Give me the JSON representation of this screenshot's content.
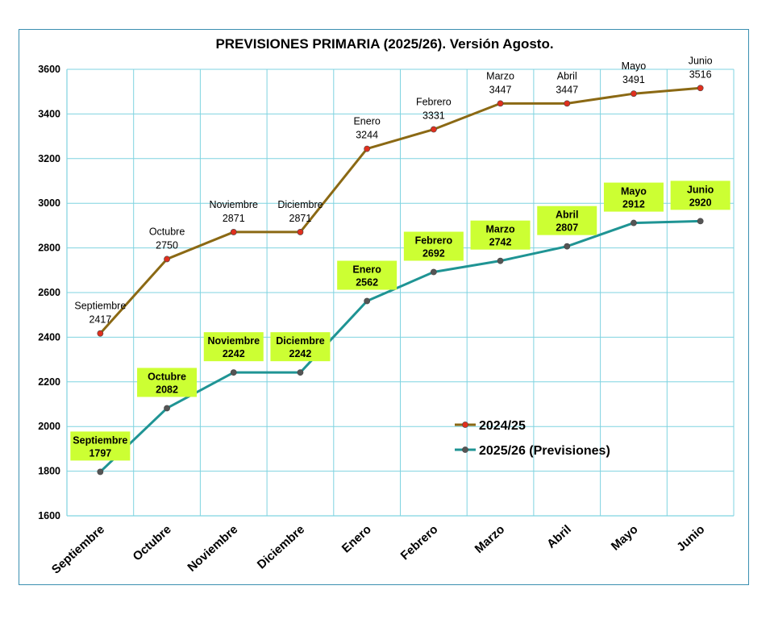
{
  "chart_data": {
    "type": "line",
    "title": "PREVISIONES PRIMARIA (2025/26). Versión Agosto.",
    "categories": [
      "Septiembre",
      "Octubre",
      "Noviembre",
      "Diciembre",
      "Enero",
      "Febrero",
      "Marzo",
      "Abril",
      "Mayo",
      "Junio"
    ],
    "ylim": [
      1600,
      3600
    ],
    "yticks": [
      1600,
      1800,
      2000,
      2200,
      2400,
      2600,
      2800,
      3000,
      3200,
      3400,
      3600
    ],
    "grid": true,
    "legend_position": "lower-right",
    "series": [
      {
        "name": "2024/25",
        "values": [
          2417,
          2750,
          2871,
          2871,
          3244,
          3331,
          3447,
          3447,
          3491,
          3516
        ],
        "line_color": "#8b6914",
        "marker_color": "#e0301e",
        "label_box": ""
      },
      {
        "name": "2025/26 (Previsiones)",
        "values": [
          1797,
          2082,
          2242,
          2242,
          2562,
          2692,
          2742,
          2807,
          2912,
          2920
        ],
        "line_color": "#1f9494",
        "marker_color": "#555555",
        "label_box": "#ccff33"
      }
    ]
  }
}
